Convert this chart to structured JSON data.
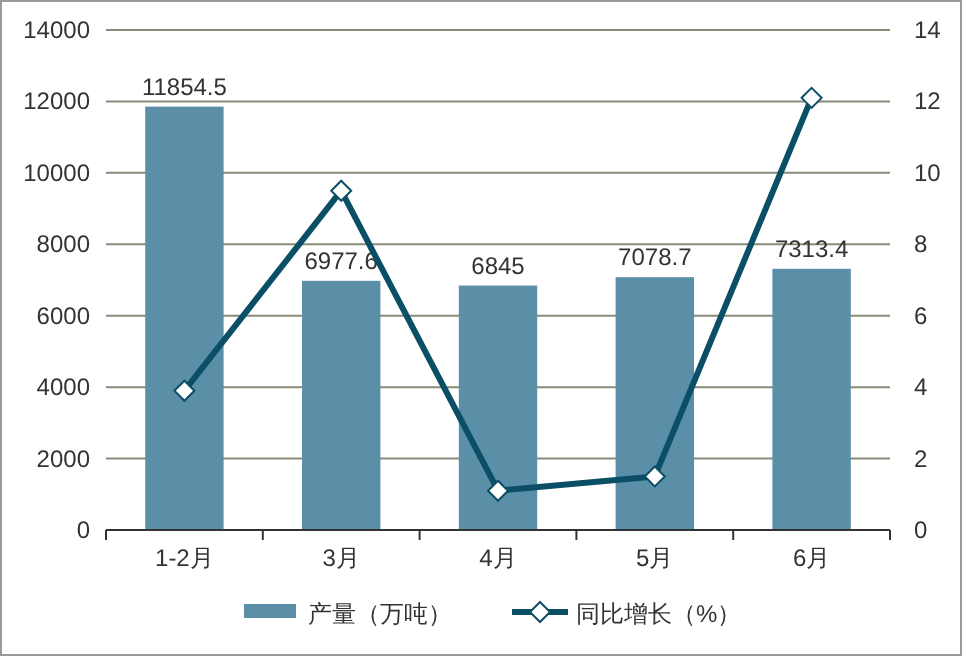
{
  "chart_data": {
    "type": "bar",
    "categories": [
      "1-2月",
      "3月",
      "4月",
      "5月",
      "6月"
    ],
    "series": [
      {
        "name": "产量（万吨）",
        "color": "#5b8fa8",
        "values": [
          11854.5,
          6977.6,
          6845,
          7078.7,
          7313.4
        ],
        "value_labels": [
          "11854.5",
          "6977.6",
          "6845",
          "7078.7",
          "7313.4"
        ]
      },
      {
        "name": "同比增长（%）",
        "type": "line",
        "axis": "y2",
        "color": "#0b4f66",
        "marker": "diamond",
        "values": [
          3.9,
          9.5,
          1.1,
          1.5,
          12.1
        ]
      }
    ],
    "ylim": [
      0,
      14000
    ],
    "yticks": [
      0,
      2000,
      4000,
      6000,
      8000,
      10000,
      12000,
      14000
    ],
    "y2lim": [
      0,
      14
    ],
    "y2ticks": [
      0,
      2,
      4,
      6,
      8,
      10,
      12,
      14
    ],
    "grid": "y",
    "legend": "bottom"
  }
}
